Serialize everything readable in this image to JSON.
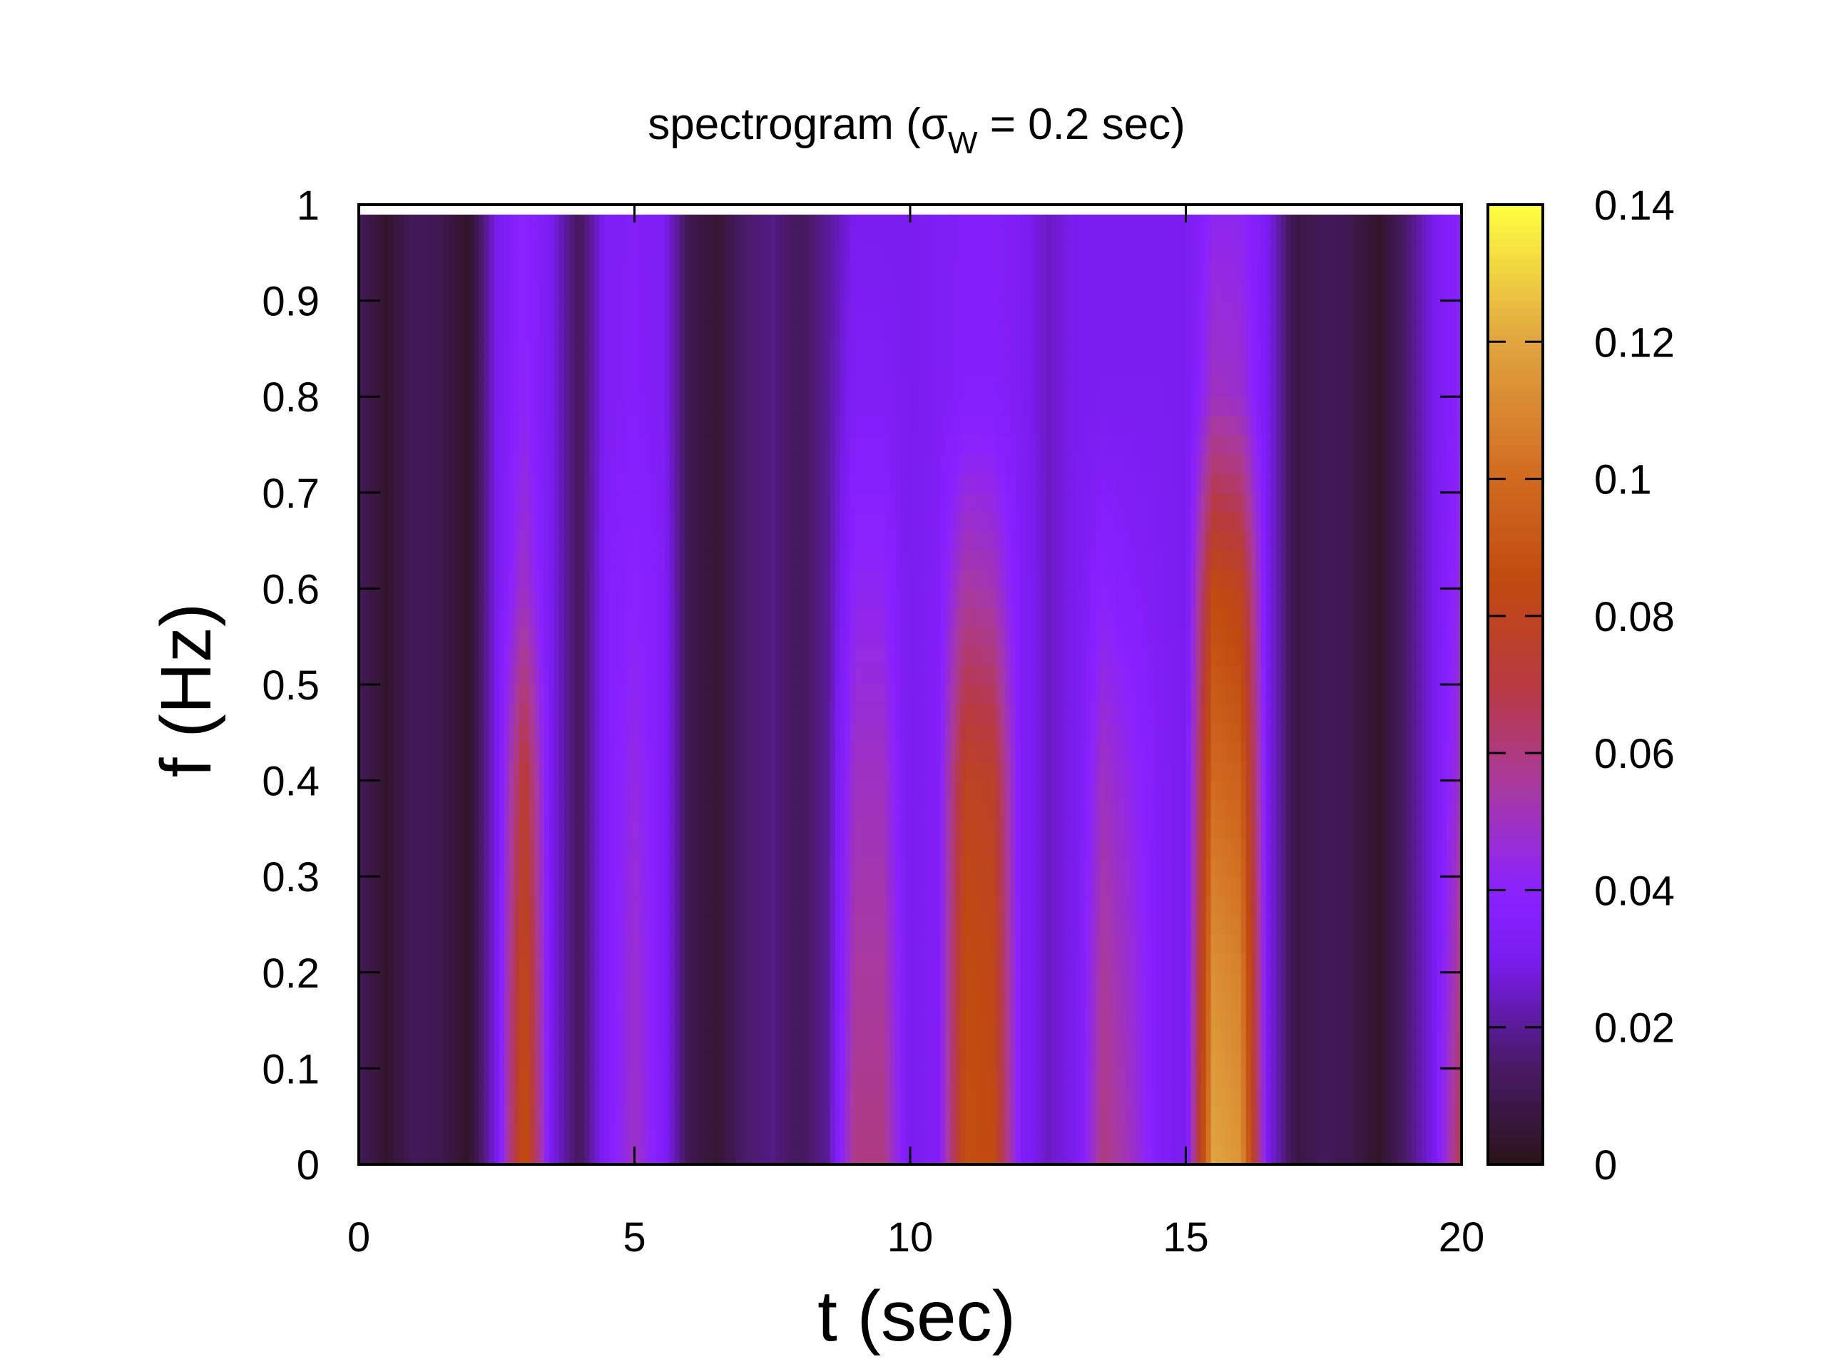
{
  "chart_data": {
    "type": "heatmap",
    "title": "spectrogram (σ",
    "title_sub": "W",
    "title_rest": " = 0.2 sec)",
    "xlabel": "t (sec)",
    "ylabel": "f (Hz)",
    "xlim": [
      0,
      20
    ],
    "ylim": [
      0,
      1
    ],
    "clim": [
      0,
      0.14
    ],
    "xticks": [
      "0",
      "5",
      "10",
      "15",
      "20"
    ],
    "yticks": [
      "0",
      "0.1",
      "0.2",
      "0.3",
      "0.4",
      "0.5",
      "0.6",
      "0.7",
      "0.8",
      "0.9",
      "1"
    ],
    "cticks": [
      "0",
      "0.02",
      "0.04",
      "0.06",
      "0.08",
      "0.1",
      "0.12",
      "0.14"
    ],
    "grid": false,
    "colormap": [
      {
        "v": 0.0,
        "color": "#2a1418"
      },
      {
        "v": 0.015,
        "color": "#4a1a6a"
      },
      {
        "v": 0.03,
        "color": "#7a1cf0"
      },
      {
        "v": 0.04,
        "color": "#8a22ff"
      },
      {
        "v": 0.055,
        "color": "#a83aa0"
      },
      {
        "v": 0.07,
        "color": "#b83a40"
      },
      {
        "v": 0.085,
        "color": "#c04a10"
      },
      {
        "v": 0.1,
        "color": "#d06a20"
      },
      {
        "v": 0.12,
        "color": "#e0a440"
      },
      {
        "v": 0.14,
        "color": "#ffff40"
      }
    ],
    "t": [
      0,
      0.5,
      1,
      1.5,
      2,
      2.5,
      3,
      3.5,
      4,
      4.5,
      5,
      5.5,
      6,
      6.5,
      7,
      7.5,
      8,
      8.5,
      9,
      9.5,
      10,
      10.5,
      11,
      11.5,
      12,
      12.5,
      13,
      13.5,
      14,
      14.5,
      15,
      15.5,
      16,
      16.5,
      17,
      17.5,
      18,
      18.5,
      19,
      19.5,
      20
    ],
    "f": [
      0,
      0.2,
      0.4,
      0.6,
      0.8,
      1.0
    ],
    "values": [
      [
        0.012,
        0.004,
        0.012,
        0.01,
        0.003,
        0.03,
        0.09,
        0.03,
        0.012,
        0.035,
        0.05,
        0.035,
        0.01,
        0.005,
        0.015,
        0.018,
        0.012,
        0.02,
        0.06,
        0.06,
        0.03,
        0.035,
        0.088,
        0.085,
        0.035,
        0.025,
        0.03,
        0.06,
        0.05,
        0.035,
        0.03,
        0.12,
        0.115,
        0.03,
        0.008,
        0.012,
        0.01,
        0.003,
        0.015,
        0.03,
        0.07
      ],
      [
        0.012,
        0.004,
        0.012,
        0.01,
        0.003,
        0.03,
        0.085,
        0.03,
        0.012,
        0.035,
        0.048,
        0.035,
        0.01,
        0.005,
        0.015,
        0.018,
        0.012,
        0.02,
        0.055,
        0.055,
        0.03,
        0.035,
        0.086,
        0.083,
        0.035,
        0.025,
        0.03,
        0.056,
        0.047,
        0.035,
        0.03,
        0.113,
        0.108,
        0.03,
        0.008,
        0.012,
        0.01,
        0.003,
        0.015,
        0.03,
        0.06
      ],
      [
        0.012,
        0.004,
        0.012,
        0.01,
        0.003,
        0.03,
        0.075,
        0.03,
        0.012,
        0.035,
        0.045,
        0.035,
        0.01,
        0.005,
        0.015,
        0.018,
        0.012,
        0.02,
        0.05,
        0.05,
        0.03,
        0.035,
        0.08,
        0.077,
        0.035,
        0.025,
        0.03,
        0.05,
        0.043,
        0.035,
        0.03,
        0.1,
        0.096,
        0.03,
        0.008,
        0.012,
        0.01,
        0.003,
        0.015,
        0.03,
        0.05
      ],
      [
        0.012,
        0.004,
        0.012,
        0.01,
        0.003,
        0.03,
        0.05,
        0.03,
        0.012,
        0.035,
        0.04,
        0.035,
        0.01,
        0.005,
        0.015,
        0.018,
        0.012,
        0.02,
        0.042,
        0.042,
        0.03,
        0.035,
        0.055,
        0.052,
        0.035,
        0.025,
        0.03,
        0.04,
        0.036,
        0.033,
        0.03,
        0.085,
        0.08,
        0.03,
        0.008,
        0.012,
        0.01,
        0.003,
        0.015,
        0.03,
        0.045
      ],
      [
        0.012,
        0.004,
        0.012,
        0.01,
        0.003,
        0.03,
        0.042,
        0.03,
        0.012,
        0.033,
        0.036,
        0.033,
        0.01,
        0.005,
        0.015,
        0.018,
        0.012,
        0.02,
        0.034,
        0.034,
        0.03,
        0.033,
        0.036,
        0.036,
        0.033,
        0.025,
        0.03,
        0.031,
        0.031,
        0.031,
        0.03,
        0.05,
        0.048,
        0.03,
        0.008,
        0.012,
        0.01,
        0.003,
        0.015,
        0.03,
        0.04
      ],
      [
        0.012,
        0.004,
        0.012,
        0.01,
        0.003,
        0.03,
        0.04,
        0.03,
        0.012,
        0.033,
        0.035,
        0.033,
        0.01,
        0.005,
        0.015,
        0.018,
        0.012,
        0.02,
        0.03,
        0.03,
        0.03,
        0.033,
        0.035,
        0.035,
        0.033,
        0.025,
        0.03,
        0.03,
        0.03,
        0.03,
        0.03,
        0.042,
        0.042,
        0.03,
        0.008,
        0.012,
        0.01,
        0.003,
        0.015,
        0.03,
        0.04
      ]
    ]
  }
}
